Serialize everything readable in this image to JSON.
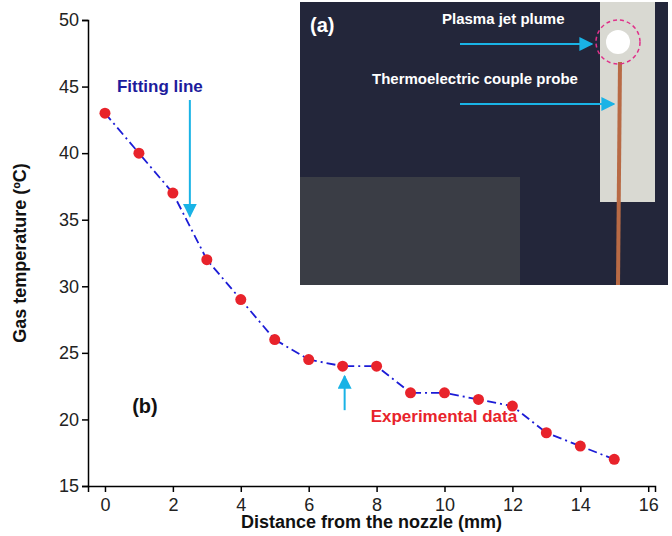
{
  "chart_data": {
    "type": "line",
    "x_label": "Distance from the nozzle (mm)",
    "y_label": "Gas temperature (ºC)",
    "x": [
      0,
      1,
      2,
      3,
      4,
      5,
      6,
      7,
      8,
      9,
      10,
      11,
      12,
      13,
      14,
      15
    ],
    "values": [
      43,
      40,
      37,
      32,
      29,
      26,
      24.5,
      24,
      24,
      22,
      22,
      21.5,
      21,
      19,
      18,
      17
    ],
    "color": "#1c1cd6",
    "marker": "circle",
    "line_style": "dashdot",
    "xlim": [
      -0.5,
      16.2
    ],
    "xticks": [
      0,
      2,
      4,
      6,
      8,
      10,
      12,
      14,
      16
    ],
    "ylim": [
      15,
      50
    ],
    "yticks": [
      15,
      20,
      25,
      30,
      35,
      40,
      45,
      50
    ],
    "grid": false,
    "annotations": [
      "Fitting line",
      "Experimental data",
      "(b)"
    ]
  },
  "inset": {
    "label": "(a)",
    "annotations": [
      "Plasma jet plume",
      "Thermoelectric couple probe"
    ]
  }
}
